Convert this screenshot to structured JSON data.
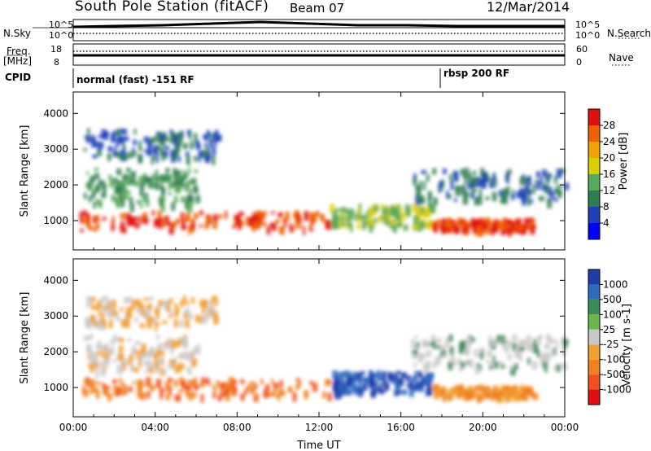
{
  "header": {
    "title": "South Pole Station (fitACF)",
    "beam": "Beam 07",
    "date": "12/Mar/2014"
  },
  "side_labels": {
    "n_sky": "N.Sky",
    "n_search": "N.Search",
    "freq_line1": "Freq.",
    "freq_line2": "[MHz]",
    "nave": "Nave",
    "cpid": "CPID"
  },
  "top_axes": {
    "noise_left_ticks": [
      "10^5",
      "10^0"
    ],
    "noise_right_ticks": [
      "10^5",
      "10^0"
    ],
    "freq_left_ticks": [
      "18",
      "8"
    ],
    "nave_right_ticks": [
      "60",
      "0"
    ]
  },
  "cpid_labels": [
    {
      "text": "normal (fast) -151 RF",
      "start_hour": 0
    },
    {
      "text": "rbsp 200 RF",
      "start_hour": 18
    }
  ],
  "colors": {
    "power_scale": [
      "#0000ff",
      "#1f3fb8",
      "#2e7d4e",
      "#57a85a",
      "#d8d000",
      "#f4a000",
      "#f06000",
      "#e01010"
    ],
    "velocity_scale": [
      "#1e3caa",
      "#2e6bbe",
      "#3a8a5a",
      "#6ab84a",
      "#c8c8c8",
      "#f0a030",
      "#f08020",
      "#f05020",
      "#e01010"
    ]
  },
  "chart_data": [
    {
      "type": "heatmap",
      "title": "",
      "xlabel": "",
      "ylabel": "Slant Range [km]",
      "x_ticks": [
        "00:00",
        "04:00",
        "08:00",
        "12:00",
        "16:00",
        "20:00",
        "00:00"
      ],
      "y_ticks": [
        1000,
        2000,
        3000,
        4000
      ],
      "xlim": [
        0,
        24
      ],
      "ylim": [
        180,
        4600
      ],
      "colorbar": {
        "label": "Power [dB]",
        "ticks": [
          4,
          8,
          12,
          16,
          20,
          24,
          28
        ],
        "range": [
          0,
          32
        ]
      }
    },
    {
      "type": "heatmap",
      "title": "",
      "xlabel": "Time UT",
      "ylabel": "Slant Range [km]",
      "x_ticks": [
        "00:00",
        "04:00",
        "08:00",
        "12:00",
        "16:00",
        "20:00",
        "00:00"
      ],
      "y_ticks": [
        1000,
        2000,
        3000,
        4000
      ],
      "xlim": [
        0,
        24
      ],
      "ylim": [
        180,
        4600
      ],
      "colorbar": {
        "label": "Velocity [m s-1]",
        "ticks": [
          "1000",
          "500",
          "100",
          "25",
          "-25",
          "-100",
          "-500",
          "-1000"
        ]
      }
    }
  ]
}
